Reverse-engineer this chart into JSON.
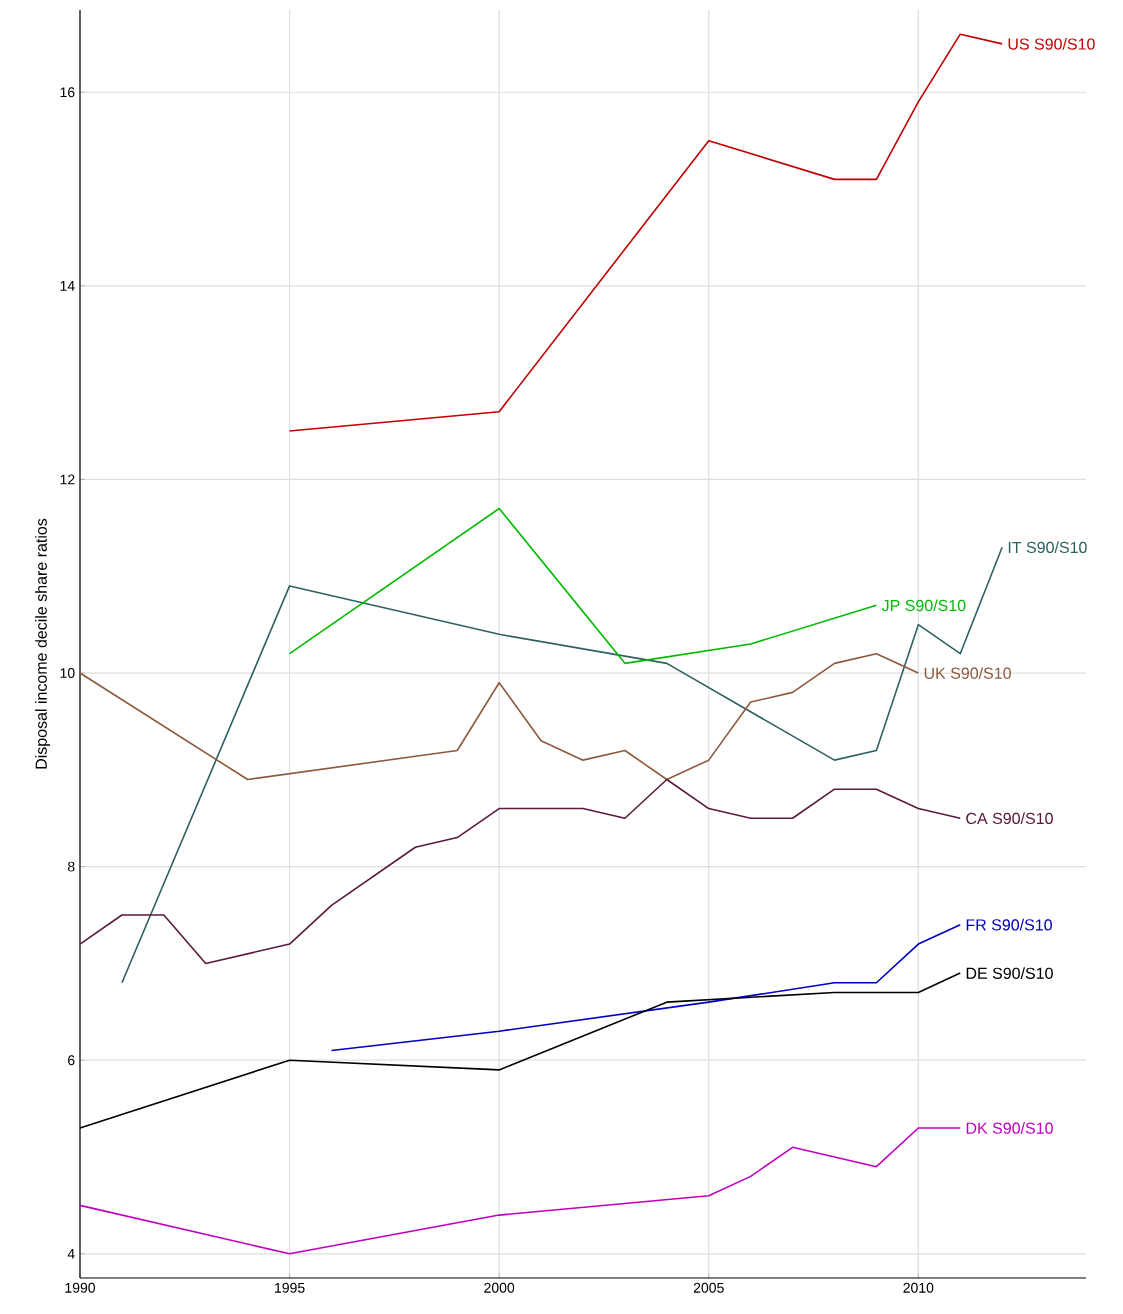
{
  "chart_data": {
    "type": "line",
    "ylabel": "Disposal income decile share ratios",
    "xlim": [
      1990,
      2014
    ],
    "ylim": [
      3.75,
      16.85
    ],
    "xticks": [
      1990,
      1995,
      2000,
      2005,
      2010
    ],
    "yticks": [
      4,
      6,
      8,
      10,
      12,
      14,
      16
    ],
    "grid": true,
    "series": [
      {
        "name": "US S90/S10",
        "color": "#c00000",
        "x": [
          1995,
          2000,
          2005,
          2008,
          2009,
          2010,
          2011,
          2012
        ],
        "values": [
          12.5,
          12.7,
          15.5,
          15.1,
          15.1,
          15.9,
          16.6,
          16.5
        ]
      },
      {
        "name": "IT S90/S10",
        "color": "#2e6060",
        "x": [
          1991,
          1995,
          2000,
          2004,
          2008,
          2009,
          2010,
          2011,
          2012
        ],
        "values": [
          6.8,
          10.9,
          10.4,
          10.1,
          9.1,
          9.2,
          10.5,
          10.2,
          11.3
        ]
      },
      {
        "name": "JP S90/S10",
        "color": "#00bb00",
        "x": [
          1995,
          2000,
          2003,
          2006,
          2009
        ],
        "values": [
          10.2,
          11.7,
          10.1,
          10.3,
          10.7
        ]
      },
      {
        "name": "UK S90/S10",
        "color": "#8b5a3c",
        "x": [
          1990,
          1994,
          1999,
          2000,
          2001,
          2002,
          2003,
          2004,
          2005,
          2006,
          2007,
          2008,
          2009,
          2010
        ],
        "values": [
          10.0,
          8.9,
          9.2,
          9.9,
          9.3,
          9.1,
          9.2,
          8.9,
          9.1,
          9.7,
          9.8,
          10.1,
          10.2,
          10.0
        ]
      },
      {
        "name": "CA S90/S10",
        "color": "#5a1a3c",
        "x": [
          1990,
          1991,
          1992,
          1993,
          1995,
          1996,
          1998,
          1999,
          2000,
          2002,
          2003,
          2004,
          2005,
          2006,
          2007,
          2008,
          2009,
          2010,
          2011
        ],
        "values": [
          7.2,
          7.5,
          7.5,
          7.0,
          7.2,
          7.6,
          8.2,
          8.3,
          8.6,
          8.6,
          8.5,
          8.9,
          8.6,
          8.5,
          8.5,
          8.8,
          8.8,
          8.6,
          8.5
        ]
      },
      {
        "name": "FR S90/S10",
        "color": "#0000c0",
        "x": [
          1996,
          2000,
          2005,
          2008,
          2009,
          2010,
          2011
        ],
        "values": [
          6.1,
          6.3,
          6.6,
          6.8,
          6.8,
          7.2,
          7.4
        ]
      },
      {
        "name": "DE S90/S10",
        "color": "#000000",
        "x": [
          1990,
          1995,
          2000,
          2004,
          2008,
          2010,
          2011
        ],
        "values": [
          5.3,
          6.0,
          5.9,
          6.6,
          6.7,
          6.7,
          6.9
        ]
      },
      {
        "name": "DK S90/S10",
        "color": "#c000c0",
        "x": [
          1990,
          1995,
          2000,
          2005,
          2006,
          2007,
          2009,
          2010,
          2011
        ],
        "values": [
          4.5,
          4.0,
          4.4,
          4.6,
          4.8,
          5.1,
          4.9,
          5.3,
          5.3
        ]
      }
    ]
  }
}
